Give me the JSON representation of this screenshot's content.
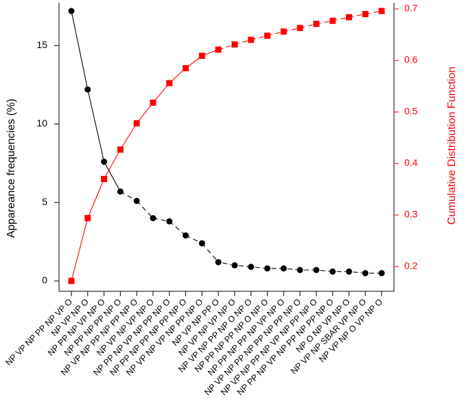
{
  "chart_data": {
    "type": "line",
    "title": "",
    "xlabel": "",
    "ylabel": "Appareance frequencies (%)",
    "y2label": "Cumulative Distribution Function",
    "categories": [
      "NP VP NP PP NP VP O",
      "NP VP NP O",
      "NP PP NP VP NP O",
      "NP PP NP PP NP O",
      "NP VP NP PP NP PP NP O",
      "NP VP NP VP NP O",
      "NP PP NP VP NP PP NP O",
      "NP PP NP PP NP PP NP O",
      "NP VP NP VP NP PP NP O",
      "NP VP NP PP O",
      "NP VP NP VP NP O",
      "NP VP NP PP NP O NP O",
      "NP PP NP PP NP O NP O",
      "NP PP NP PP NP VP NP O",
      "NP VP NP PP NP PP NP PP NP O",
      "NP VP NP PP NP VP NP PP NP O",
      "NP PP NP VP NP PP NP PP NP O",
      "NP O NP VP NP O",
      "NP VP NP SBAR VP NP O",
      "NP VP NP O VP NP O"
    ],
    "series": [
      {
        "axis": "left",
        "color": "#000000",
        "marker": "circle",
        "values": [
          17.2,
          12.2,
          7.6,
          5.7,
          5.1,
          4.0,
          3.8,
          2.9,
          2.4,
          1.2,
          1.0,
          0.9,
          0.8,
          0.8,
          0.7,
          0.7,
          0.6,
          0.6,
          0.5,
          0.5
        ],
        "line_styles": [
          "solid",
          "solid",
          "solid",
          "dashed",
          "dashed",
          "dashed",
          "dashed",
          "dashed",
          "dashed",
          "dotdash",
          "dotdash",
          "dotdash",
          "dotdash",
          "dotdash",
          "dotdash",
          "dotdash",
          "dotdash",
          "dotdash",
          "dotdash"
        ]
      },
      {
        "axis": "right",
        "color": "#ff0000",
        "marker": "square",
        "values": [
          0.172,
          0.294,
          0.37,
          0.427,
          0.478,
          0.518,
          0.556,
          0.585,
          0.609,
          0.621,
          0.631,
          0.64,
          0.648,
          0.656,
          0.663,
          0.671,
          0.677,
          0.684,
          0.69,
          0.696
        ],
        "line_styles": [
          "solid",
          "solid",
          "solid",
          "solid",
          "solid",
          "solid",
          "solid",
          "solid",
          "solid",
          "dashed",
          "dashed",
          "dashed",
          "dashed",
          "dashed",
          "dashed",
          "dashed",
          "dashed",
          "dashed",
          "dashed"
        ]
      }
    ],
    "ylim": [
      0,
      17.2
    ],
    "y2lim": [
      0.172,
      0.696
    ],
    "yticks": [
      0,
      5,
      10,
      15
    ],
    "y2ticks": [
      0.2,
      0.3,
      0.4,
      0.5,
      0.6,
      0.7
    ],
    "grid": false,
    "legend": "none"
  }
}
